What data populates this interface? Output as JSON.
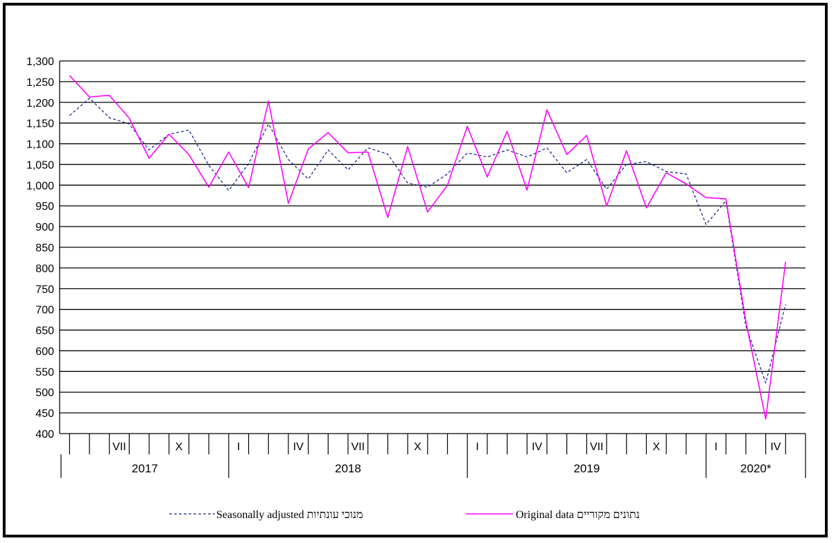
{
  "chart_data": {
    "type": "line",
    "title": "",
    "xlabel": "",
    "ylabel": "",
    "ylim": [
      400,
      1300
    ],
    "ytick_step": 50,
    "grid": "horizontal",
    "legend_position": "bottom",
    "x": [
      "2017-05",
      "2017-06",
      "2017-07",
      "2017-08",
      "2017-09",
      "2017-10",
      "2017-11",
      "2017-12",
      "2018-01",
      "2018-02",
      "2018-03",
      "2018-04",
      "2018-05",
      "2018-06",
      "2018-07",
      "2018-08",
      "2018-09",
      "2018-10",
      "2018-11",
      "2018-12",
      "2019-01",
      "2019-02",
      "2019-03",
      "2019-04",
      "2019-05",
      "2019-06",
      "2019-07",
      "2019-08",
      "2019-09",
      "2019-10",
      "2019-11",
      "2019-12",
      "2020-01",
      "2020-02",
      "2020-03",
      "2020-04",
      "2020-05"
    ],
    "month_labels": [
      "",
      "",
      "VII",
      "",
      "",
      "X",
      "",
      "",
      "I",
      "",
      "",
      "IV",
      "",
      "",
      "VII",
      "",
      "",
      "X",
      "",
      "",
      "I",
      "",
      "",
      "IV",
      "",
      "",
      "VII",
      "",
      "",
      "X",
      "",
      "",
      "I",
      "",
      "",
      "IV",
      ""
    ],
    "years": [
      {
        "label": "2017",
        "start": 0,
        "end": 8
      },
      {
        "label": "2018",
        "start": 8,
        "end": 20
      },
      {
        "label": "2019",
        "start": 20,
        "end": 32
      },
      {
        "label": "2020*",
        "start": 32,
        "end": 37
      }
    ],
    "series": [
      {
        "name": "Seasonally adjusted  מנוכי עונתיות",
        "color": "#1f2a8c",
        "dash": true,
        "values": [
          1168,
          1210,
          1163,
          1148,
          1085,
          1123,
          1133,
          1048,
          987,
          1052,
          1148,
          1062,
          1015,
          1085,
          1037,
          1090,
          1075,
          1005,
          995,
          1027,
          1078,
          1068,
          1085,
          1068,
          1090,
          1030,
          1062,
          990,
          1050,
          1057,
          1033,
          1027,
          905,
          962,
          660,
          522,
          712
        ]
      },
      {
        "name": "Original data  נתונים מקוריים",
        "color": "#ff00ff",
        "dash": false,
        "values": [
          1265,
          1213,
          1217,
          1162,
          1065,
          1123,
          1074,
          995,
          1080,
          994,
          1203,
          956,
          1087,
          1127,
          1078,
          1080,
          922,
          1093,
          935,
          1000,
          1142,
          1020,
          1130,
          988,
          1182,
          1074,
          1120,
          950,
          1083,
          945,
          1030,
          1003,
          970,
          967,
          672,
          435,
          815
        ]
      }
    ]
  }
}
